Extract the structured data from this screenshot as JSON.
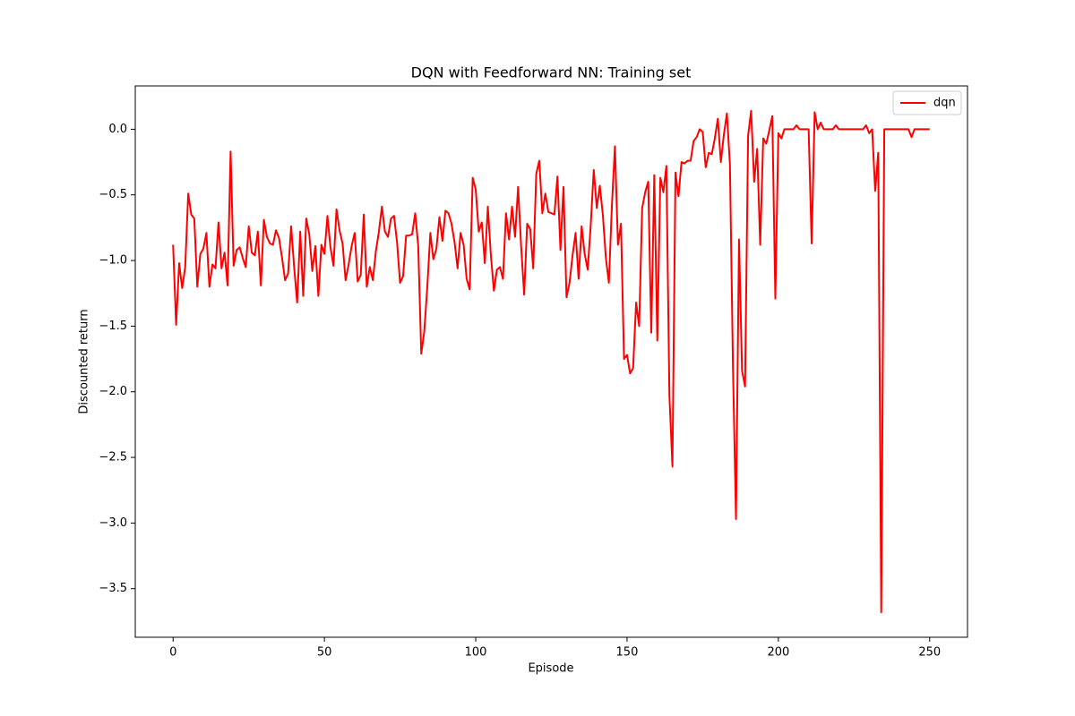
{
  "chart_data": {
    "type": "line",
    "title": "DQN with Feedforward NN: Training set",
    "xlabel": "Episode",
    "ylabel": "Discounted return",
    "legend": "upper right",
    "grid": false,
    "xlim": [
      -12.5,
      262.5
    ],
    "ylim": [
      -3.87,
      0.33
    ],
    "xticks": [
      0,
      50,
      100,
      150,
      200,
      250
    ],
    "yticks": [
      {
        "value": -3.5,
        "label": "−3.5"
      },
      {
        "value": -3,
        "label": "−3.0"
      },
      {
        "value": -2.5,
        "label": "−2.5"
      },
      {
        "value": -2,
        "label": "−2.0"
      },
      {
        "value": -1.5,
        "label": "−1.5"
      },
      {
        "value": -1,
        "label": "−1.0"
      },
      {
        "value": -0.5,
        "label": "−0.5"
      },
      {
        "value": 0,
        "label": "0.0"
      }
    ],
    "x": [
      0,
      1,
      2,
      3,
      4,
      5,
      6,
      7,
      8,
      9,
      10,
      11,
      12,
      13,
      14,
      15,
      16,
      17,
      18,
      19,
      20,
      21,
      22,
      23,
      24,
      25,
      26,
      27,
      28,
      29,
      30,
      31,
      32,
      33,
      34,
      35,
      36,
      37,
      38,
      39,
      40,
      41,
      42,
      43,
      44,
      45,
      46,
      47,
      48,
      49,
      50,
      51,
      52,
      53,
      54,
      55,
      56,
      57,
      58,
      59,
      60,
      61,
      62,
      63,
      64,
      65,
      66,
      67,
      68,
      69,
      70,
      71,
      72,
      73,
      74,
      75,
      76,
      77,
      78,
      79,
      80,
      81,
      82,
      83,
      84,
      85,
      86,
      87,
      88,
      89,
      90,
      91,
      92,
      93,
      94,
      95,
      96,
      97,
      98,
      99,
      100,
      101,
      102,
      103,
      104,
      105,
      106,
      107,
      108,
      109,
      110,
      111,
      112,
      113,
      114,
      115,
      116,
      117,
      118,
      119,
      120,
      121,
      122,
      123,
      124,
      125,
      126,
      127,
      128,
      129,
      130,
      131,
      132,
      133,
      134,
      135,
      136,
      137,
      138,
      139,
      140,
      141,
      142,
      143,
      144,
      145,
      146,
      147,
      148,
      149,
      150,
      151,
      152,
      153,
      154,
      155,
      156,
      157,
      158,
      159,
      160,
      161,
      162,
      163,
      164,
      165,
      166,
      167,
      168,
      169,
      170,
      171,
      172,
      173,
      174,
      175,
      176,
      177,
      178,
      179,
      180,
      181,
      182,
      183,
      184,
      185,
      186,
      187,
      188,
      189,
      190,
      191,
      192,
      193,
      194,
      195,
      196,
      197,
      198,
      199,
      200,
      201,
      202,
      203,
      204,
      205,
      206,
      207,
      208,
      209,
      210,
      211,
      212,
      213,
      214,
      215,
      216,
      217,
      218,
      219,
      220,
      221,
      222,
      223,
      224,
      225,
      226,
      227,
      228,
      229,
      230,
      231,
      232,
      233,
      234,
      235,
      236,
      237,
      238,
      239,
      240,
      241,
      242,
      243,
      244,
      245,
      246,
      247,
      248,
      249,
      250
    ],
    "series": [
      {
        "name": "dqn",
        "color": "#ff0000",
        "values": [
          -0.88,
          -1.49,
          -1.02,
          -1.21,
          -1.05,
          -0.49,
          -0.65,
          -0.68,
          -1.2,
          -0.95,
          -0.91,
          -0.79,
          -1.2,
          -1.03,
          -1.06,
          -0.71,
          -1.06,
          -0.94,
          -1.19,
          -0.17,
          -1.04,
          -0.92,
          -0.9,
          -0.98,
          -1.05,
          -0.74,
          -0.94,
          -0.96,
          -0.78,
          -1.19,
          -0.69,
          -0.82,
          -0.87,
          -0.88,
          -0.77,
          -0.83,
          -0.98,
          -1.15,
          -1.1,
          -0.74,
          -1.05,
          -1.32,
          -0.78,
          -1.27,
          -0.68,
          -0.8,
          -1.08,
          -0.89,
          -1.27,
          -0.88,
          -0.95,
          -0.66,
          -0.9,
          -1.04,
          -0.61,
          -0.77,
          -0.87,
          -1.15,
          -1.03,
          -0.89,
          -0.79,
          -1.16,
          -1.11,
          -0.65,
          -1.2,
          -1.05,
          -1.15,
          -0.93,
          -0.78,
          -0.59,
          -0.78,
          -0.82,
          -0.68,
          -0.66,
          -0.86,
          -1.17,
          -1.12,
          -0.81,
          -0.81,
          -0.8,
          -0.64,
          -0.89,
          -1.71,
          -1.54,
          -1.2,
          -0.79,
          -0.99,
          -0.91,
          -0.67,
          -0.85,
          -0.62,
          -0.64,
          -0.72,
          -0.86,
          -1.06,
          -0.79,
          -0.88,
          -1.14,
          -1.22,
          -0.37,
          -0.46,
          -0.78,
          -0.71,
          -1.02,
          -0.59,
          -0.96,
          -1.23,
          -1.07,
          -1.05,
          -1.14,
          -0.64,
          -0.84,
          -0.59,
          -0.82,
          -0.44,
          -0.89,
          -1.26,
          -0.72,
          -0.76,
          -1.06,
          -0.34,
          -0.24,
          -0.64,
          -0.49,
          -0.63,
          -0.64,
          -0.65,
          -0.36,
          -0.92,
          -0.44,
          -1.28,
          -1.17,
          -0.96,
          -0.79,
          -1.14,
          -0.74,
          -0.95,
          -1.07,
          -0.73,
          -0.31,
          -0.6,
          -0.43,
          -0.65,
          -0.98,
          -1.17,
          -0.58,
          -0.13,
          -0.88,
          -0.72,
          -1.75,
          -1.72,
          -1.86,
          -1.82,
          -1.32,
          -1.5,
          -0.6,
          -0.48,
          -0.4,
          -1.55,
          -0.35,
          -1.61,
          -0.37,
          -0.48,
          -0.28,
          -2.03,
          -2.57,
          -0.33,
          -0.51,
          -0.25,
          -0.26,
          -0.24,
          -0.24,
          -0.09,
          -0.06,
          0.0,
          -0.02,
          -0.29,
          -0.18,
          -0.19,
          -0.07,
          0.08,
          -0.25,
          -0.04,
          0.12,
          -0.27,
          -1.81,
          -2.97,
          -0.84,
          -1.84,
          -1.96,
          -0.05,
          0.14,
          -0.4,
          -0.15,
          -0.88,
          -0.07,
          -0.11,
          -0.01,
          0.1,
          -1.29,
          -0.03,
          -0.07,
          0.0,
          0.0,
          0.0,
          0.0,
          0.03,
          0.0,
          0.0,
          0.0,
          0.0,
          -0.87,
          0.13,
          0.0,
          0.05,
          0.0,
          0.0,
          0.0,
          0.0,
          0.03,
          0.0,
          0.0,
          0.0,
          0.0,
          0.0,
          0.0,
          0.0,
          0.0,
          0.0,
          0.03,
          -0.03,
          0.0,
          -0.47,
          -0.18,
          -3.68,
          0.0,
          0.0,
          0.0,
          0.0,
          0.0,
          0.0,
          0.0,
          0.0,
          0.0,
          -0.06,
          0.0,
          0.0,
          0.0,
          0.0,
          0.0,
          0.0
        ]
      }
    ]
  }
}
